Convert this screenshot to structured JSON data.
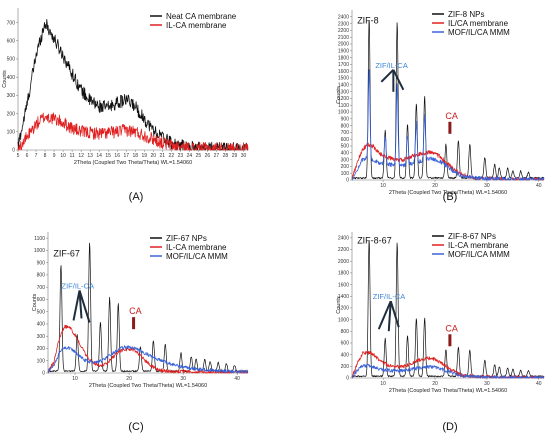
{
  "chart_data": [
    {
      "type": "line",
      "panel_label": "(A)",
      "xlabel": "2Theta (Coupled Two Theta/Theta) WL=1.54060",
      "ylabel": "Counts",
      "xlim": [
        5,
        30.5
      ],
      "ylim": [
        0,
        780
      ],
      "xticks": [
        5,
        6,
        7,
        8,
        9,
        10,
        11,
        12,
        13,
        14,
        15,
        16,
        17,
        18,
        19,
        20,
        21,
        22,
        23,
        24,
        25,
        26,
        27,
        28,
        29,
        30
      ],
      "yticks": [
        0,
        100,
        200,
        300,
        400,
        500,
        600,
        700
      ],
      "legend_position": "top-right",
      "colors": {
        "Neat CA membrane": "#111111",
        "IL-CA membrane": "#e02020"
      },
      "series": [
        {
          "name": "Neat CA membrane",
          "color": "#111111",
          "x": [
            5,
            6,
            7,
            8,
            9,
            10,
            11,
            12,
            13,
            14,
            15,
            16,
            17,
            18,
            19,
            20,
            21,
            22,
            23,
            24,
            25,
            26,
            27,
            28,
            29,
            30
          ],
          "y": [
            20,
            250,
            520,
            700,
            610,
            520,
            420,
            330,
            270,
            240,
            235,
            260,
            275,
            240,
            170,
            110,
            70,
            40,
            25,
            15,
            12,
            10,
            9,
            8,
            8,
            7
          ]
        },
        {
          "name": "IL-CA membrane",
          "color": "#e02020",
          "x": [
            5,
            6,
            7,
            8,
            9,
            10,
            11,
            12,
            13,
            14,
            15,
            16,
            17,
            18,
            19,
            20,
            21,
            22,
            23,
            24,
            25,
            26,
            27,
            28,
            29,
            30
          ],
          "y": [
            5,
            70,
            140,
            185,
            170,
            150,
            120,
            100,
            95,
            90,
            95,
            100,
            110,
            100,
            80,
            60,
            40,
            25,
            15,
            10,
            8,
            7,
            6,
            6,
            5,
            5
          ]
        }
      ],
      "annotations": []
    },
    {
      "type": "line",
      "panel_label": "(B)",
      "xlabel": "2Theta (Coupled Two Theta/Theta) WL=1.54060",
      "ylabel": "Counts",
      "xlim": [
        4,
        41
      ],
      "ylim": [
        0,
        2500
      ],
      "xticks": [
        10,
        20,
        30,
        40
      ],
      "yticks": [
        0,
        100,
        200,
        300,
        400,
        500,
        600,
        700,
        800,
        900,
        1000,
        1100,
        1200,
        1300,
        1400,
        1500,
        1600,
        1700,
        1800,
        1900,
        2000,
        2100,
        2200,
        2300,
        2400
      ],
      "legend_position": "top-right",
      "colors": {
        "ZIF-8 NPs": "#111111",
        "IL/CA membrane": "#e02020",
        "MOF/IL/CA MMM": "#3a63d8"
      },
      "series": [
        {
          "name": "ZIF-8 NPs",
          "color": "#111111",
          "style": "spiky",
          "peaks": [
            [
              7.3,
              2350
            ],
            [
              10.4,
              700
            ],
            [
              12.7,
              2300
            ],
            [
              14.7,
              800
            ],
            [
              16.4,
              1100
            ],
            [
              18.0,
              1200
            ],
            [
              22.1,
              500
            ],
            [
              24.5,
              550
            ],
            [
              26.7,
              500
            ],
            [
              29.6,
              300
            ],
            [
              31.5,
              200
            ],
            [
              32.4,
              150
            ],
            [
              34.0,
              150
            ],
            [
              35.0,
              100
            ],
            [
              36.5,
              100
            ],
            [
              38.0,
              80
            ]
          ],
          "baseline": 30
        },
        {
          "name": "IL/CA membrane",
          "color": "#e02020",
          "x": [
            4,
            5,
            6,
            7,
            8,
            9,
            10,
            11,
            12,
            13,
            14,
            15,
            16,
            17,
            18,
            19,
            20,
            21,
            22,
            23,
            24,
            25,
            26,
            27,
            28,
            30,
            32,
            35,
            38,
            41
          ],
          "y": [
            20,
            250,
            450,
            520,
            500,
            420,
            350,
            330,
            310,
            290,
            300,
            330,
            360,
            380,
            400,
            410,
            390,
            340,
            270,
            200,
            140,
            90,
            60,
            40,
            30,
            20,
            15,
            10,
            8,
            5
          ]
        },
        {
          "name": "MOF/IL/CA MMM",
          "color": "#3a63d8",
          "x": [
            4,
            5,
            6,
            7,
            8,
            9,
            10,
            11,
            12,
            13,
            14,
            15,
            16,
            17,
            18,
            19,
            20,
            21,
            22,
            23,
            24,
            25,
            26,
            28,
            30,
            32,
            35,
            38,
            41
          ],
          "y": [
            10,
            150,
            300,
            330,
            300,
            260,
            240,
            230,
            220,
            210,
            220,
            230,
            250,
            270,
            290,
            310,
            300,
            270,
            220,
            160,
            110,
            70,
            50,
            30,
            20,
            15,
            10,
            8,
            5
          ],
          "peaks": [
            [
              7.3,
              1300
            ],
            [
              10.4,
              400
            ],
            [
              12.7,
              1200
            ],
            [
              14.7,
              420
            ],
            [
              16.4,
              600
            ],
            [
              18.0,
              650
            ]
          ]
        }
      ],
      "annotations": [
        {
          "text": "ZIF-8",
          "color": "#111111",
          "x": 5,
          "y": 2300
        },
        {
          "text": "ZIF/IL-CA",
          "color": "#3d86d6",
          "x": 8.5,
          "y": 1650
        },
        {
          "text": "CA",
          "color": "#c81e1e",
          "x": 22,
          "y": 900
        }
      ]
    },
    {
      "type": "line",
      "panel_label": "(C)",
      "xlabel": "2Theta (Coupled Two Theta/Theta) WL=1.54060",
      "ylabel": "Counts",
      "xlim": [
        5,
        42
      ],
      "ylim": [
        0,
        1150
      ],
      "xticks": [
        10,
        20,
        30,
        40
      ],
      "yticks": [
        0,
        100,
        200,
        300,
        400,
        500,
        600,
        700,
        800,
        900,
        1000,
        1100
      ],
      "legend_position": "top-right",
      "colors": {
        "ZIF-67 NPs": "#111111",
        "IL-CA membrane": "#e02020",
        "MOF/IL/CA MMM": "#3a63d8"
      },
      "series": [
        {
          "name": "ZIF-67 NPs",
          "color": "#111111",
          "style": "spiky",
          "peaks": [
            [
              7.4,
              870
            ],
            [
              10.4,
              300
            ],
            [
              12.7,
              1050
            ],
            [
              14.7,
              400
            ],
            [
              16.4,
              600
            ],
            [
              18.0,
              550
            ],
            [
              22.1,
              200
            ],
            [
              24.5,
              250
            ],
            [
              26.7,
              220
            ],
            [
              29.6,
              150
            ],
            [
              31.5,
              120
            ],
            [
              32.4,
              100
            ],
            [
              34.0,
              100
            ],
            [
              35.0,
              80
            ],
            [
              36.5,
              70
            ],
            [
              38.0,
              60
            ],
            [
              39.5,
              50
            ]
          ],
          "baseline": 15
        },
        {
          "name": "IL-CA membrane",
          "color": "#e02020",
          "x": [
            5,
            6,
            7,
            8,
            9,
            10,
            11,
            12,
            13,
            14,
            15,
            16,
            17,
            18,
            19,
            20,
            21,
            22,
            23,
            24,
            25,
            26,
            28,
            30,
            32,
            35,
            38,
            42
          ],
          "y": [
            10,
            80,
            260,
            380,
            370,
            310,
            230,
            150,
            100,
            70,
            60,
            80,
            130,
            170,
            190,
            195,
            180,
            150,
            100,
            60,
            35,
            20,
            12,
            10,
            8,
            6,
            5,
            4
          ]
        },
        {
          "name": "MOF/IL/CA MMM",
          "color": "#3a63d8",
          "x": [
            5,
            6,
            7,
            8,
            9,
            10,
            11,
            12,
            13,
            14,
            15,
            16,
            17,
            18,
            19,
            20,
            21,
            22,
            23,
            24,
            25,
            26,
            27,
            28,
            30,
            32,
            35,
            38,
            42
          ],
          "y": [
            10,
            60,
            150,
            210,
            200,
            170,
            130,
            100,
            90,
            90,
            100,
            130,
            160,
            190,
            210,
            210,
            200,
            180,
            160,
            140,
            120,
            100,
            85,
            70,
            50,
            35,
            25,
            15,
            10
          ]
        }
      ],
      "annotations": [
        {
          "text": "ZIF-67",
          "color": "#111111",
          "x": 6,
          "y": 950
        },
        {
          "text": "ZIF/IL-CA",
          "color": "#3d86d6",
          "x": 7.5,
          "y": 690
        },
        {
          "text": "CA",
          "color": "#c81e1e",
          "x": 20,
          "y": 480
        }
      ]
    },
    {
      "type": "line",
      "panel_label": "(D)",
      "xlabel": "2Theta (Coupled Two Theta/Theta) WL=1.54060",
      "ylabel": "Counts",
      "xlim": [
        4,
        41
      ],
      "ylim": [
        0,
        2500
      ],
      "xticks": [
        10,
        20,
        30,
        40
      ],
      "yticks": [
        0,
        200,
        400,
        600,
        800,
        1000,
        1200,
        1400,
        1600,
        1800,
        2000,
        2200,
        2400
      ],
      "legend_position": "top-right",
      "colors": {
        "ZIF-8-67 NPs": "#111111",
        "IL-CA membrane": "#e02020",
        "MOF/IL/CA MMM": "#3a63d8"
      },
      "series": [
        {
          "name": "ZIF-8-67 NPs",
          "color": "#111111",
          "style": "spiky",
          "peaks": [
            [
              7.3,
              2350
            ],
            [
              10.4,
              650
            ],
            [
              12.7,
              2300
            ],
            [
              14.7,
              700
            ],
            [
              16.4,
              1000
            ],
            [
              18.0,
              1000
            ],
            [
              22.1,
              450
            ],
            [
              24.5,
              500
            ],
            [
              26.7,
              450
            ],
            [
              29.6,
              280
            ],
            [
              31.5,
              200
            ],
            [
              32.4,
              160
            ],
            [
              34.0,
              150
            ],
            [
              35.0,
              120
            ],
            [
              36.5,
              100
            ],
            [
              38.0,
              90
            ]
          ],
          "baseline": 30
        },
        {
          "name": "IL-CA membrane",
          "color": "#e02020",
          "x": [
            4,
            5,
            6,
            7,
            8,
            9,
            10,
            11,
            12,
            13,
            14,
            15,
            16,
            17,
            18,
            19,
            20,
            21,
            22,
            23,
            24,
            25,
            26,
            28,
            30,
            32,
            35,
            38,
            41
          ],
          "y": [
            20,
            250,
            420,
            440,
            410,
            330,
            260,
            220,
            200,
            190,
            200,
            230,
            270,
            310,
            330,
            340,
            320,
            270,
            210,
            150,
            100,
            60,
            40,
            25,
            15,
            12,
            10,
            8,
            5
          ]
        },
        {
          "name": "MOF/IL/CA MMM",
          "color": "#3a63d8",
          "x": [
            4,
            5,
            6,
            7,
            8,
            9,
            10,
            11,
            12,
            13,
            14,
            15,
            16,
            17,
            18,
            19,
            20,
            21,
            22,
            23,
            24,
            25,
            26,
            28,
            30,
            32,
            35,
            38,
            41
          ],
          "y": [
            15,
            130,
            200,
            210,
            190,
            160,
            140,
            130,
            125,
            120,
            130,
            145,
            160,
            175,
            185,
            190,
            180,
            160,
            130,
            100,
            70,
            50,
            35,
            20,
            15,
            10,
            8,
            6,
            4
          ]
        }
      ],
      "annotations": [
        {
          "text": "ZIF-8-67",
          "color": "#111111",
          "x": 5,
          "y": 2300
        },
        {
          "text": "ZIF/IL-CA",
          "color": "#3d86d6",
          "x": 8,
          "y": 1350
        },
        {
          "text": "CA",
          "color": "#c81e1e",
          "x": 22,
          "y": 800
        }
      ]
    }
  ]
}
